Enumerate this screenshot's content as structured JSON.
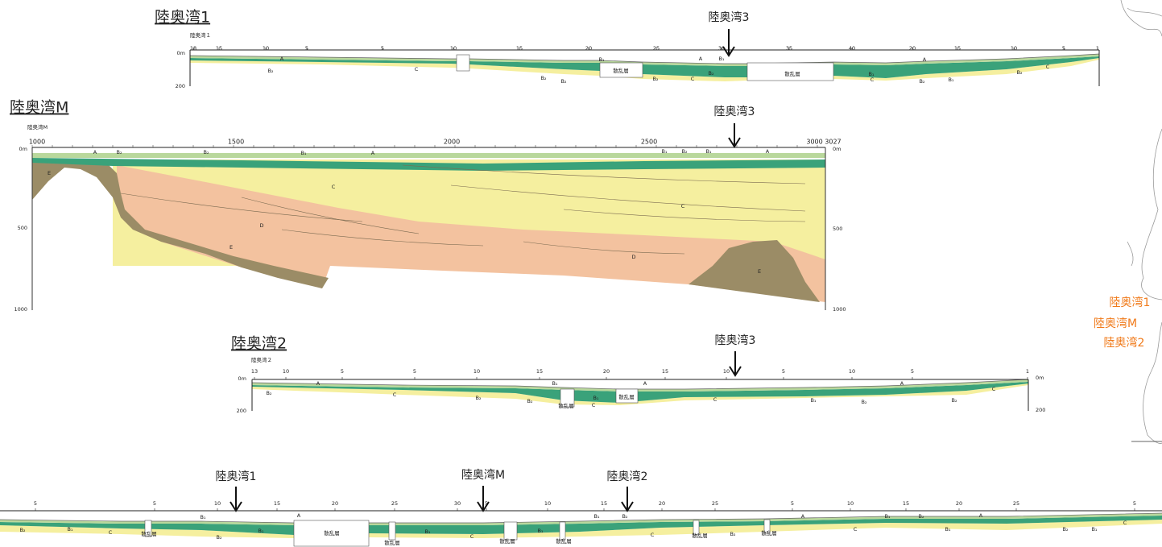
{
  "profiles": [
    {
      "title": "陸奥湾1",
      "line_label": "陸奥湾１",
      "marker": "陸奥湾3",
      "depth_left": [
        "0m",
        "200"
      ],
      "distance_labels": [
        "18",
        "15",
        "10",
        "5",
        "5",
        "10",
        "15",
        "20",
        "25",
        "30",
        "35",
        "40",
        "20",
        "15",
        "10",
        "5",
        "1"
      ],
      "layer_labels": [
        "A",
        "B₂",
        "C",
        "B₁",
        "B₂",
        "B₂",
        "散乱層",
        "B₂",
        "C",
        "A",
        "B₁",
        "B₂",
        "散乱層",
        "B₁",
        "C",
        "A",
        "B₂",
        "B₁",
        "B₂",
        "C"
      ]
    },
    {
      "title": "陸奥湾M",
      "line_label": "陸奥湾M",
      "marker": "陸奥湾3",
      "depth_left": [
        "0m",
        "500",
        "1000"
      ],
      "depth_right": [
        "0m",
        "500",
        "1000"
      ],
      "distance_labels": [
        "1000",
        "1500",
        "2000",
        "2500",
        "3000 3027"
      ],
      "layer_labels": [
        "A",
        "B₂",
        "B₂",
        "B₁",
        "A",
        "B₁",
        "B₂",
        "B₁",
        "A",
        "E",
        "C",
        "C",
        "D",
        "E",
        "D",
        "E"
      ]
    },
    {
      "title": "陸奥湾2",
      "line_label": "陸奥湾２",
      "marker": "陸奥湾3",
      "depth_left": [
        "0m",
        "200"
      ],
      "depth_right": [
        "0m",
        "200"
      ],
      "distance_labels": [
        "13",
        "10",
        "5",
        "5",
        "10",
        "15",
        "20",
        "15",
        "10",
        "5",
        "10",
        "5",
        "1"
      ],
      "layer_labels": [
        "B₂",
        "A",
        "C",
        "B₂",
        "B₁",
        "B₂",
        "散乱層",
        "B₁",
        "C",
        "散乱層",
        "A",
        "C",
        "B₁",
        "B₂",
        "B₂",
        "A",
        "C"
      ]
    },
    {
      "markers": [
        "陸奥湾1",
        "陸奥湾M",
        "陸奥湾2"
      ],
      "distance_labels": [
        "5",
        "5",
        "10",
        "15",
        "20",
        "25",
        "30",
        "5",
        "10",
        "15",
        "20",
        "25",
        "5",
        "10",
        "15",
        "20",
        "25",
        "5"
      ],
      "layer_labels": [
        "B₂",
        "B₁",
        "C",
        "散乱層",
        "B₂",
        "B₁",
        "B₁",
        "A",
        "散乱層",
        "散乱層",
        "B₁",
        "C",
        "散乱層",
        "B₁",
        "散乱層",
        "B₁",
        "B₂",
        "C",
        "散乱層",
        "B₂",
        "散乱層",
        "A",
        "C",
        "B₁",
        "B₂",
        "A",
        "B₂",
        "B₁",
        "C",
        "B₁"
      ]
    }
  ],
  "map_labels": [
    "陸奥湾1",
    "陸奥湾M",
    "陸奥湾2"
  ]
}
